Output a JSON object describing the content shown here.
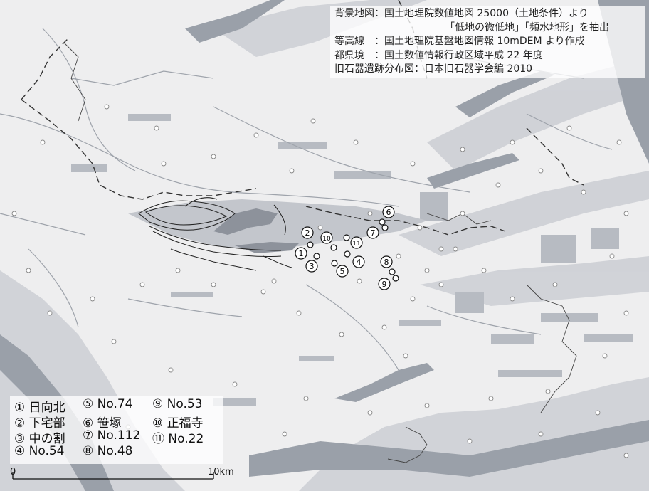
{
  "credits": [
    "背景地図：国土地理院数値地図 25000（土地条件）より",
    "「低地の微低地」「頻水地形」を抽出",
    "等高線　：国土地理院基盤地図情報 10mDEM より作成",
    "都県境　：国土数値情報行政区域平成 22 年度",
    "旧石器遺跡分布図：日本旧石器学会編 2010"
  ],
  "markers": [
    {
      "n": "1",
      "text": "①"
    },
    {
      "n": "2",
      "text": "②"
    },
    {
      "n": "3",
      "text": "③"
    },
    {
      "n": "4",
      "text": "④"
    },
    {
      "n": "5",
      "text": "⑤"
    },
    {
      "n": "6",
      "text": "⑥"
    },
    {
      "n": "7",
      "text": "⑦"
    },
    {
      "n": "8",
      "text": "⑧"
    },
    {
      "n": "9",
      "text": "⑨"
    },
    {
      "n": "10",
      "text": "⑩"
    },
    {
      "n": "11",
      "text": "⑪"
    }
  ],
  "legend": [
    "① 日向北",
    "② 下宅部",
    "③ 中の割",
    "④ No.54",
    "⑤ No.74",
    "⑥ 笹塚",
    "⑦ No.112",
    "⑧ No.48",
    "⑨ No.53",
    "⑩ 正福寺",
    "⑪ No.22"
  ],
  "scale": {
    "start": "0",
    "end": "10km"
  },
  "colors": {
    "background": "#f2f2f2",
    "lowland": "#b4b7be",
    "dark_lowland": "#8d929b",
    "water": "#9ca2ab",
    "contour": "#222222",
    "border": "#333333"
  }
}
